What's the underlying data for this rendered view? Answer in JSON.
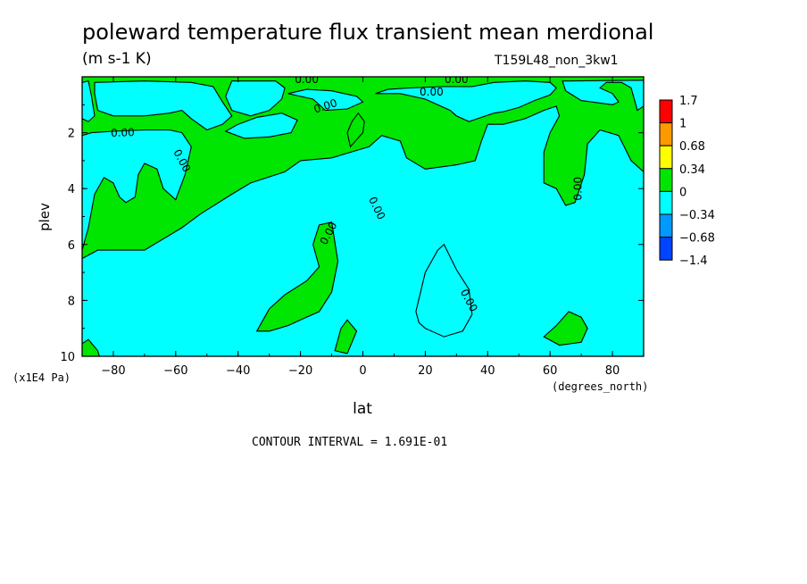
{
  "header": {
    "title": "poleward temperature flux transient mean merdional",
    "units": "(m s-1 K)",
    "run_name": "T159L48_non_3kw1",
    "contour_interval": "CONTOUR INTERVAL = 1.691E-01"
  },
  "chart_data": {
    "type": "heatmap",
    "xlabel": "lat",
    "xlabel_units": "(degrees_north)",
    "ylabel": "plev",
    "ylabel_units": "(x1E4 Pa)",
    "xlim": [
      -90,
      90
    ],
    "ylim": [
      10,
      0
    ],
    "x_ticks": [
      -80,
      -60,
      -40,
      -20,
      0,
      20,
      40,
      60,
      80
    ],
    "y_ticks": [
      2,
      4,
      6,
      8,
      10
    ],
    "contour_label": "0.00",
    "colorbar": {
      "levels": [
        "1.7",
        "1",
        "0.68",
        "0.34",
        "0",
        "-0.34",
        "-0.68",
        "-1.4"
      ],
      "colors": [
        "#ff0000",
        "#ff9900",
        "#ffff00",
        "#00e600",
        "#00ffff",
        "#0099ff",
        "#0044ff"
      ]
    },
    "fill_colors": {
      "positive": "#00e600",
      "negative": "#00ffff"
    },
    "regions": [
      {
        "sign": "negative",
        "outline": [
          [
            -90,
            2.1
          ],
          [
            -87,
            2.0
          ],
          [
            -80,
            1.95
          ],
          [
            -70,
            1.9
          ],
          [
            -62,
            1.9
          ],
          [
            -58,
            2.0
          ],
          [
            -55,
            2.5
          ],
          [
            -57,
            3.5
          ],
          [
            -60,
            4.4
          ],
          [
            -64,
            4.0
          ],
          [
            -66,
            3.3
          ],
          [
            -70,
            3.1
          ],
          [
            -72,
            3.5
          ],
          [
            -73,
            4.3
          ],
          [
            -76,
            4.5
          ],
          [
            -78,
            4.3
          ],
          [
            -80,
            3.8
          ],
          [
            -83,
            3.6
          ],
          [
            -86,
            4.2
          ],
          [
            -88,
            5.4
          ],
          [
            -90,
            6.2
          ]
        ]
      },
      {
        "sign": "negative",
        "outline": [
          [
            -90,
            0.2
          ],
          [
            -88,
            0.15
          ],
          [
            -87,
            0.7
          ],
          [
            -86,
            1.4
          ],
          [
            -88,
            1.6
          ],
          [
            -90,
            1.5
          ]
        ]
      },
      {
        "sign": "negative",
        "outline": [
          [
            -86,
            0.2
          ],
          [
            -70,
            0.15
          ],
          [
            -55,
            0.2
          ],
          [
            -48,
            0.35
          ],
          [
            -45,
            0.9
          ],
          [
            -42,
            1.4
          ],
          [
            -45,
            1.7
          ],
          [
            -50,
            1.9
          ],
          [
            -55,
            1.5
          ],
          [
            -58,
            1.2
          ],
          [
            -62,
            1.3
          ],
          [
            -70,
            1.4
          ],
          [
            -80,
            1.4
          ],
          [
            -85,
            1.2
          ],
          [
            -86,
            0.6
          ]
        ]
      },
      {
        "sign": "negative",
        "outline": [
          [
            -42,
            0.15
          ],
          [
            -28,
            0.15
          ],
          [
            -25,
            0.4
          ],
          [
            -26,
            0.8
          ],
          [
            -30,
            1.2
          ],
          [
            -36,
            1.4
          ],
          [
            -42,
            1.2
          ],
          [
            -44,
            0.7
          ]
        ]
      },
      {
        "sign": "negative",
        "outline": [
          [
            -24,
            0.6
          ],
          [
            -16,
            0.8
          ],
          [
            -12,
            1.2
          ],
          [
            -5,
            1.15
          ],
          [
            0,
            0.9
          ],
          [
            -2,
            0.7
          ],
          [
            -10,
            0.5
          ],
          [
            -18,
            0.45
          ]
        ]
      },
      {
        "sign": "negative",
        "outline": [
          [
            4,
            0.6
          ],
          [
            12,
            0.6
          ],
          [
            20,
            0.8
          ],
          [
            28,
            1.2
          ],
          [
            30,
            1.4
          ],
          [
            34,
            1.6
          ],
          [
            38,
            1.45
          ],
          [
            42,
            1.3
          ],
          [
            45,
            1.25
          ],
          [
            50,
            1.1
          ],
          [
            55,
            0.85
          ],
          [
            60,
            0.65
          ],
          [
            62,
            0.4
          ],
          [
            60,
            0.2
          ],
          [
            52,
            0.15
          ],
          [
            42,
            0.2
          ],
          [
            35,
            0.35
          ],
          [
            25,
            0.35
          ],
          [
            15,
            0.4
          ],
          [
            8,
            0.45
          ]
        ]
      },
      {
        "sign": "negative",
        "outline": [
          [
            -36,
            3.8
          ],
          [
            -25,
            3.4
          ],
          [
            -20,
            3.0
          ],
          [
            -10,
            2.9
          ],
          [
            -4,
            2.7
          ],
          [
            2,
            2.5
          ],
          [
            6,
            2.1
          ],
          [
            12,
            2.3
          ],
          [
            14,
            2.9
          ],
          [
            20,
            3.3
          ],
          [
            30,
            3.15
          ],
          [
            36,
            3.0
          ],
          [
            38,
            2.3
          ],
          [
            40,
            1.7
          ],
          [
            45,
            1.7
          ],
          [
            52,
            1.5
          ],
          [
            58,
            1.2
          ],
          [
            62,
            1.05
          ],
          [
            63,
            1.4
          ],
          [
            60,
            2.0
          ],
          [
            58,
            2.7
          ],
          [
            58,
            3.8
          ],
          [
            62,
            4.0
          ],
          [
            65,
            4.6
          ],
          [
            68,
            4.5
          ],
          [
            71,
            3.5
          ],
          [
            72,
            2.4
          ],
          [
            76,
            1.9
          ],
          [
            82,
            2.1
          ],
          [
            86,
            3.0
          ],
          [
            89,
            3.3
          ],
          [
            90,
            3.4
          ],
          [
            90,
            1.05
          ],
          [
            88,
            1.2
          ],
          [
            86,
            0.4
          ],
          [
            83,
            0.2
          ],
          [
            78,
            0.2
          ],
          [
            76,
            0.4
          ],
          [
            80,
            0.6
          ],
          [
            82,
            0.9
          ],
          [
            80,
            1.0
          ],
          [
            70,
            0.85
          ],
          [
            65,
            0.5
          ],
          [
            64,
            0.15
          ],
          [
            90,
            0.12
          ],
          [
            90,
            10
          ],
          [
            -90,
            10
          ],
          [
            -90,
            6.5
          ],
          [
            -85,
            6.2
          ],
          [
            -70,
            6.2
          ],
          [
            -58,
            5.4
          ],
          [
            -52,
            4.9
          ],
          [
            -42,
            4.2
          ]
        ]
      },
      {
        "sign": "positive",
        "outline": [
          [
            -34,
            9.1
          ],
          [
            -30,
            8.3
          ],
          [
            -25,
            7.8
          ],
          [
            -18,
            7.3
          ],
          [
            -14,
            6.8
          ],
          [
            -16,
            6.0
          ],
          [
            -14,
            5.3
          ],
          [
            -10,
            5.2
          ],
          [
            -8,
            6.6
          ],
          [
            -10,
            7.7
          ],
          [
            -14,
            8.4
          ],
          [
            -20,
            8.7
          ],
          [
            -24,
            8.9
          ],
          [
            -30,
            9.1
          ]
        ]
      },
      {
        "sign": "positive",
        "outline": [
          [
            -9,
            9.8
          ],
          [
            -7,
            9.0
          ],
          [
            -5,
            8.7
          ],
          [
            -2,
            9.1
          ],
          [
            -5,
            9.9
          ]
        ]
      },
      {
        "sign": "positive",
        "outline": [
          [
            -92,
            9.7
          ],
          [
            -88,
            9.4
          ],
          [
            -85,
            9.8
          ],
          [
            -84,
            10.2
          ],
          [
            -92,
            10.2
          ]
        ]
      },
      {
        "sign": "positive",
        "outline": [
          [
            58,
            9.3
          ],
          [
            62,
            8.9
          ],
          [
            66,
            8.4
          ],
          [
            70,
            8.6
          ],
          [
            72,
            9.0
          ],
          [
            70,
            9.5
          ],
          [
            63,
            9.6
          ]
        ]
      },
      {
        "sign": "positive",
        "outline": [
          [
            -4,
            2.5
          ],
          [
            -2,
            2.25
          ],
          [
            0,
            2.0
          ],
          [
            0.5,
            1.6
          ],
          [
            -1.5,
            1.3
          ],
          [
            -3.5,
            1.6
          ],
          [
            -5,
            2.0
          ]
        ]
      },
      {
        "sign": "negative",
        "outline": [
          [
            -44,
            1.95
          ],
          [
            -40,
            1.7
          ],
          [
            -34,
            1.45
          ],
          [
            -26,
            1.3
          ],
          [
            -21,
            1.55
          ],
          [
            -23,
            2.0
          ],
          [
            -30,
            2.15
          ],
          [
            -38,
            2.2
          ]
        ]
      },
      {
        "sign": "negative",
        "outline": [
          [
            17,
            8.4
          ],
          [
            20,
            7.0
          ],
          [
            24,
            6.2
          ],
          [
            26,
            6.0
          ],
          [
            30,
            6.9
          ],
          [
            34,
            7.6
          ],
          [
            35,
            8.5
          ],
          [
            32,
            9.1
          ],
          [
            26,
            9.3
          ],
          [
            20,
            9.0
          ],
          [
            18,
            8.8
          ]
        ]
      }
    ],
    "contour_labels": [
      {
        "x": -77,
        "y": 2.0,
        "angle": -2
      },
      {
        "x": -58,
        "y": 3.0,
        "angle": 62
      },
      {
        "x": -11,
        "y": 5.6,
        "angle": -62
      },
      {
        "x": -12,
        "y": 1.05,
        "angle": -18
      },
      {
        "x": 4.5,
        "y": 4.7,
        "angle": 64
      },
      {
        "x": 22,
        "y": 0.55,
        "angle": 0
      },
      {
        "x": 34,
        "y": 8.0,
        "angle": 62
      },
      {
        "x": 69,
        "y": 4.0,
        "angle": -90
      },
      {
        "x": -18,
        "y": 0.1,
        "angle": 0
      },
      {
        "x": 30,
        "y": 0.1,
        "angle": 0
      }
    ]
  }
}
